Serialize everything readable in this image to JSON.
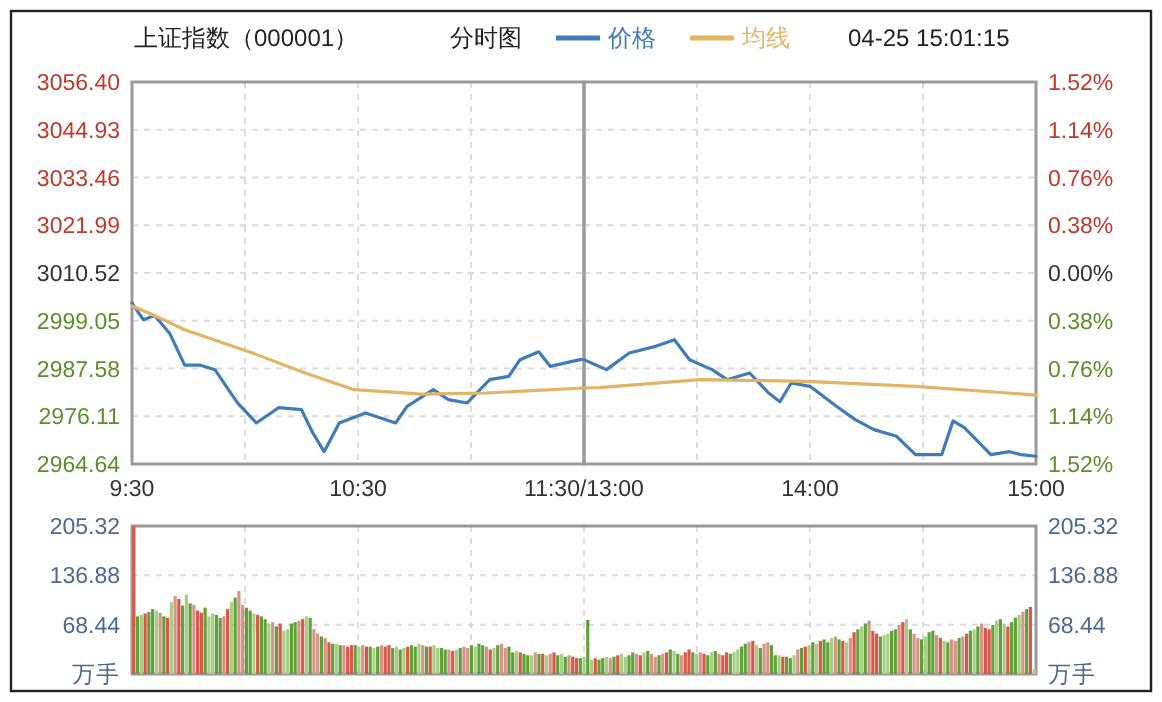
{
  "chart_data": [
    {
      "type": "line",
      "title": "上证指数（000001）",
      "subtitle": "分时图",
      "annotations": [
        "04-25 15:01:15"
      ],
      "legend": "top",
      "grid": true,
      "xlim": [
        9.5,
        11.5
      ],
      "xticks": [
        {
          "value": 9.5,
          "label": "9:30"
        },
        {
          "value": 10,
          "label": null
        },
        {
          "value": 10.5,
          "label": "10:30"
        },
        {
          "value": 11,
          "label": null
        },
        {
          "value": 11.5,
          "label": "11:30/13:00"
        }
      ],
      "ylim": [
        2964.64,
        3056.4
      ],
      "yticks": [
        {
          "value": 2964.64,
          "label": "2964.64"
        },
        {
          "value": 2976.11,
          "label": "2976.11"
        },
        {
          "value": 2987.58,
          "label": "2987.58"
        },
        {
          "value": 2999.05,
          "label": "2999.05"
        },
        {
          "value": 3010.52,
          "label": "3010.52"
        },
        {
          "value": 3021.99,
          "label": "3021.99"
        },
        {
          "value": 3033.46,
          "label": "3033.46"
        },
        {
          "value": 3044.93,
          "label": "3044.93"
        },
        {
          "value": 3056.4,
          "label": "3056.40"
        }
      ],
      "series": [
        {
          "name": "价格",
          "color": "#3f7cb8",
          "x": [
            9.5,
            9.55,
            9.6,
            9.667,
            9.733,
            9.8,
            9.867,
            9.917,
            9.967,
            10.05,
            10.15,
            10.25,
            10.3,
            10.35,
            10.417,
            10.533,
            10.667,
            10.717,
            10.833,
            10.9,
            10.983,
            11.083,
            11.167,
            11.217,
            11.3,
            11.35,
            11.483,
            11.5
          ],
          "values": [
            3003.3,
            2999.3,
            3000.3,
            2996,
            2988.4,
            2988.4,
            2987.3,
            2983.3,
            2979.3,
            2974.5,
            2978.2,
            2977.7,
            2972.1,
            2967.6,
            2974.5,
            2976.9,
            2974.5,
            2978.5,
            2982.5,
            2980.1,
            2979.3,
            2984.9,
            2985.7,
            2989.7,
            2991.6,
            2988.1,
            2989.7,
            2989.7
          ]
        },
        {
          "name": "均线",
          "color": "#e2b464",
          "x": [
            9.5,
            9.6,
            9.733,
            10.033,
            10.267,
            10.483,
            10.783,
            11.067,
            11.5
          ],
          "values": [
            3002.6,
            3000.3,
            2996.9,
            2991.3,
            2986.5,
            2982.5,
            2981.4,
            2981.7,
            2982.9
          ]
        }
      ]
    },
    {
      "type": "line",
      "grid": true,
      "tick_labels": "x",
      "xlim": [
        13,
        15
      ],
      "xticks": [
        {
          "value": 13,
          "label": null
        },
        {
          "value": 13.5,
          "label": null
        },
        {
          "value": 14,
          "label": "14:00"
        },
        {
          "value": 14.5,
          "label": null
        },
        {
          "value": 15,
          "label": "15:00"
        }
      ],
      "ylim": [
        2964.64,
        3056.4
      ],
      "yticks": [
        2964.64,
        2976.11,
        2987.58,
        2999.05,
        3010.52,
        3021.99,
        3033.46,
        3044.93,
        3056.4
      ],
      "y2lim": [
        -1.52,
        1.52
      ],
      "y2ticks": [
        {
          "value": -1.52,
          "label": "1.52%"
        },
        {
          "value": -1.14,
          "label": "1.14%"
        },
        {
          "value": -0.76,
          "label": "0.76%"
        },
        {
          "value": -0.38,
          "label": "0.38%"
        },
        {
          "value": 0,
          "label": "0.00%"
        },
        {
          "value": 0.38,
          "label": "0.38%"
        },
        {
          "value": 0.76,
          "label": "0.76%"
        },
        {
          "value": 1.14,
          "label": "1.14%"
        },
        {
          "value": 1.52,
          "label": "1.52%"
        }
      ],
      "series": [
        {
          "color": "#3f7cb8",
          "x": [
            13,
            13.067,
            13.1,
            13.2,
            13.317,
            13.4,
            13.467,
            13.567,
            13.633,
            13.733,
            13.817,
            13.867,
            13.917,
            14,
            14.117,
            14.2,
            14.283,
            14.383,
            14.467,
            14.583,
            14.633,
            14.683,
            14.8,
            14.883,
            14.933,
            15
          ],
          "values": [
            2989.7,
            2988.1,
            2987.3,
            2991.3,
            2992.9,
            2994.5,
            2989.7,
            2987.3,
            2984.9,
            2986.5,
            2981.7,
            2979.6,
            2984.1,
            2983.3,
            2978.5,
            2975.3,
            2972.9,
            2971.3,
            2966.9,
            2966.9,
            2975,
            2973.4,
            2966.9,
            2967.6,
            2966.9,
            2966.5
          ]
        },
        {
          "color": "#e2b464",
          "x": [
            13,
            13.067,
            13.517,
            13.983,
            14.467,
            15
          ],
          "values": [
            2982.9,
            2983,
            2984.9,
            2984.5,
            2983.3,
            2981.2
          ]
        }
      ]
    },
    {
      "type": "bar",
      "grid": true,
      "ylim": [
        0,
        205.32
      ],
      "yticks": [
        {
          "value": 0,
          "label": "万手"
        },
        68.44,
        136.88,
        205.32
      ],
      "y2lim": [
        0,
        205.32
      ],
      "y2ticks": [
        {
          "value": 0,
          "label": "万手"
        },
        68.44,
        136.88,
        205.32
      ],
      "categories": [
        null,
        null,
        null,
        null,
        null,
        null,
        null,
        null,
        null,
        null,
        null,
        null,
        null,
        null,
        null,
        null,
        null,
        null,
        null,
        null,
        null,
        null,
        null,
        null,
        null,
        null,
        null,
        null,
        null,
        null,
        null,
        null,
        null,
        null,
        null,
        null,
        null,
        null,
        null,
        null,
        null,
        null,
        null,
        null,
        null,
        null,
        null,
        null,
        null,
        null,
        null,
        null,
        null,
        null,
        null,
        null,
        null,
        null,
        null,
        null,
        null,
        null,
        null,
        null,
        null,
        null,
        null,
        null,
        null,
        null,
        null,
        null,
        null,
        null,
        null,
        null,
        null,
        null,
        null,
        null,
        null,
        null,
        null,
        null,
        null,
        null,
        null,
        null,
        null,
        null,
        null,
        null,
        null,
        null,
        null,
        null,
        null,
        null,
        null,
        null,
        null,
        null,
        null,
        null,
        null,
        null,
        null,
        null,
        null,
        null,
        null,
        null,
        null,
        null,
        null,
        null,
        null,
        null,
        null,
        null,
        null,
        null,
        null,
        null,
        null,
        null,
        null,
        null,
        null,
        null,
        null,
        null,
        null,
        null,
        null,
        null,
        null,
        null,
        null,
        null,
        null,
        null,
        null,
        null,
        null,
        null,
        null,
        null,
        null,
        null,
        null,
        null,
        null,
        null,
        null,
        null,
        null,
        null,
        null,
        null,
        null,
        null,
        null,
        null,
        null,
        null,
        null,
        null,
        null,
        null,
        null,
        null,
        null,
        null,
        null,
        null,
        null,
        null,
        null,
        null,
        null,
        null,
        null,
        null,
        null,
        null,
        null,
        null,
        null,
        null,
        null,
        null,
        null,
        null,
        null,
        null,
        null,
        null,
        null,
        null,
        null,
        null,
        null,
        null,
        null,
        null,
        null,
        null,
        null,
        null,
        null,
        null,
        null,
        null,
        null,
        null,
        null,
        null,
        null,
        null,
        null,
        null,
        null,
        null,
        null,
        null,
        null,
        null,
        null,
        null,
        null,
        null,
        null,
        null,
        null,
        null,
        null,
        null,
        null,
        null,
        null
      ],
      "values": [
        205,
        80,
        82,
        84,
        86,
        90,
        88,
        85,
        80,
        78,
        100,
        108,
        104,
        95,
        110,
        98,
        96,
        88,
        85,
        92,
        80,
        84,
        82,
        78,
        80,
        90,
        100,
        106,
        115,
        96,
        92,
        88,
        84,
        82,
        80,
        76,
        70,
        72,
        66,
        70,
        60,
        62,
        70,
        72,
        74,
        76,
        80,
        78,
        62,
        56,
        52,
        50,
        44,
        42,
        42,
        40,
        40,
        38,
        40,
        40,
        38,
        40,
        38,
        38,
        36,
        38,
        40,
        38,
        40,
        36,
        38,
        34,
        36,
        38,
        40,
        38,
        42,
        40,
        38,
        38,
        40,
        36,
        36,
        34,
        34,
        32,
        34,
        36,
        38,
        36,
        40,
        38,
        42,
        40,
        38,
        34,
        36,
        40,
        42,
        36,
        38,
        30,
        32,
        30,
        28,
        26,
        26,
        30,
        28,
        28,
        26,
        28,
        30,
        26,
        28,
        24,
        26,
        24,
        22,
        22,
        24,
        75,
        20,
        22,
        20,
        22,
        24,
        22,
        24,
        26,
        28,
        24,
        26,
        30,
        28,
        26,
        30,
        32,
        28,
        24,
        26,
        28,
        30,
        34,
        32,
        28,
        26,
        30,
        34,
        30,
        28,
        30,
        28,
        26,
        30,
        32,
        28,
        26,
        30,
        28,
        30,
        34,
        38,
        42,
        44,
        46,
        40,
        36,
        42,
        44,
        40,
        26,
        26,
        24,
        24,
        22,
        26,
        34,
        36,
        38,
        40,
        44,
        42,
        46,
        48,
        44,
        50,
        52,
        48,
        46,
        44,
        50,
        58,
        62,
        66,
        70,
        74,
        60,
        56,
        52,
        54,
        56,
        60,
        62,
        68,
        72,
        76,
        62,
        56,
        50,
        48,
        52,
        58,
        60,
        54,
        50,
        46,
        44,
        48,
        46,
        50,
        52,
        56,
        60,
        62,
        66,
        70,
        64,
        62,
        68,
        74,
        76,
        70,
        66,
        72,
        78,
        82,
        86,
        90,
        93,
        7
      ],
      "colors": [
        "#d9584a",
        "#62a03a",
        "#a9cf86",
        "#d9584a",
        "#62a03a",
        "#62a03a",
        "#a9cf86",
        "#d4968a",
        "#62a03a",
        "#d9584a",
        "#a9cf86",
        "#d4968a",
        "#d9584a",
        "#62a03a",
        "#a9cf86",
        "#62a03a",
        "#d4968a",
        "#d9584a",
        "#d9584a",
        "#62a03a",
        "#a9cf86",
        "#a9cf86",
        "#62a03a",
        "#62a03a",
        "#d4968a",
        "#d9584a",
        "#a9cf86",
        "#62a03a",
        "#d4968a",
        "#d4968a",
        "#62a03a",
        "#62a03a",
        "#a9cf86",
        "#d9584a",
        "#62a03a",
        "#62a03a",
        "#a9cf86",
        "#d4968a",
        "#62a03a",
        "#d9584a",
        "#a9cf86",
        "#a9cf86",
        "#62a03a",
        "#62a03a",
        "#d4968a",
        "#d9584a",
        "#a9cf86",
        "#62a03a",
        "#d4968a",
        "#d4968a",
        "#62a03a",
        "#d4968a",
        "#d9584a",
        "#62a03a",
        "#a9cf86",
        "#62a03a",
        "#d4968a",
        "#d9584a",
        "#d9584a",
        "#62a03a",
        "#a9cf86",
        "#d4968a",
        "#d9584a",
        "#62a03a",
        "#a9cf86",
        "#62a03a",
        "#d4968a",
        "#d9584a",
        "#d9584a",
        "#62a03a",
        "#a9cf86",
        "#62a03a",
        "#a9cf86",
        "#d9584a",
        "#62a03a",
        "#62a03a",
        "#a9cf86",
        "#d4968a",
        "#62a03a",
        "#d9584a",
        "#a9cf86",
        "#a9cf86",
        "#62a03a",
        "#62a03a",
        "#d4968a",
        "#d9584a",
        "#a9cf86",
        "#62a03a",
        "#d4968a",
        "#d4968a",
        "#62a03a",
        "#a9cf86",
        "#62a03a",
        "#62a03a",
        "#d4968a",
        "#d9584a",
        "#a9cf86",
        "#62a03a",
        "#d4968a",
        "#d4968a",
        "#62a03a",
        "#62a03a",
        "#a9cf86",
        "#d9584a",
        "#62a03a",
        "#62a03a",
        "#a9cf86",
        "#d4968a",
        "#62a03a",
        "#d9584a",
        "#a9cf86",
        "#d4968a",
        "#d9584a",
        "#62a03a",
        "#a9cf86",
        "#62a03a",
        "#d4968a",
        "#d9584a",
        "#d9584a",
        "#62a03a",
        "#a9cf86",
        "#62a03a",
        "#a9cf86",
        "#d9584a",
        "#62a03a",
        "#62a03a",
        "#a9cf86",
        "#d4968a",
        "#62a03a",
        "#d9584a",
        "#a9cf86",
        "#a9cf86",
        "#62a03a",
        "#62a03a",
        "#d4968a",
        "#d9584a",
        "#a9cf86",
        "#62a03a",
        "#d4968a",
        "#d4968a",
        "#62a03a",
        "#d4968a",
        "#d9584a",
        "#62a03a",
        "#a9cf86",
        "#62a03a",
        "#d4968a",
        "#d9584a",
        "#d9584a",
        "#62a03a",
        "#a9cf86",
        "#d4968a",
        "#d9584a",
        "#62a03a",
        "#a9cf86",
        "#62a03a",
        "#d4968a",
        "#d9584a",
        "#d9584a",
        "#62a03a",
        "#a9cf86",
        "#a9cf86",
        "#62a03a",
        "#62a03a",
        "#d4968a",
        "#d9584a",
        "#a9cf86",
        "#62a03a",
        "#d4968a",
        "#d4968a",
        "#62a03a",
        "#62a03a",
        "#a9cf86",
        "#d9584a",
        "#62a03a",
        "#62a03a",
        "#a9cf86",
        "#d4968a",
        "#62a03a",
        "#d9584a",
        "#a9cf86",
        "#62a03a",
        "#a9cf86",
        "#d9584a",
        "#62a03a",
        "#62a03a",
        "#a9cf86",
        "#d4968a",
        "#62a03a",
        "#d9584a",
        "#a9cf86",
        "#d4968a",
        "#d9584a",
        "#62a03a",
        "#a9cf86",
        "#62a03a",
        "#d4968a",
        "#d9584a",
        "#d9584a",
        "#62a03a",
        "#a9cf86",
        "#a9cf86",
        "#62a03a",
        "#62a03a",
        "#d4968a",
        "#d9584a",
        "#a9cf86",
        "#62a03a",
        "#d4968a",
        "#d4968a",
        "#62a03a",
        "#a9cf86",
        "#62a03a",
        "#62a03a",
        "#d4968a",
        "#d9584a",
        "#a9cf86",
        "#62a03a",
        "#d4968a",
        "#d4968a",
        "#62a03a",
        "#d4968a",
        "#d9584a",
        "#62a03a",
        "#a9cf86",
        "#62a03a",
        "#d4968a",
        "#d9584a",
        "#d9584a",
        "#62a03a",
        "#a9cf86",
        "#62a03a",
        "#a9cf86",
        "#d9584a",
        "#62a03a",
        "#62a03a",
        "#a9cf86",
        "#d4968a",
        "#62a03a",
        "#d9584a",
        "#a9cf86"
      ]
    }
  ]
}
